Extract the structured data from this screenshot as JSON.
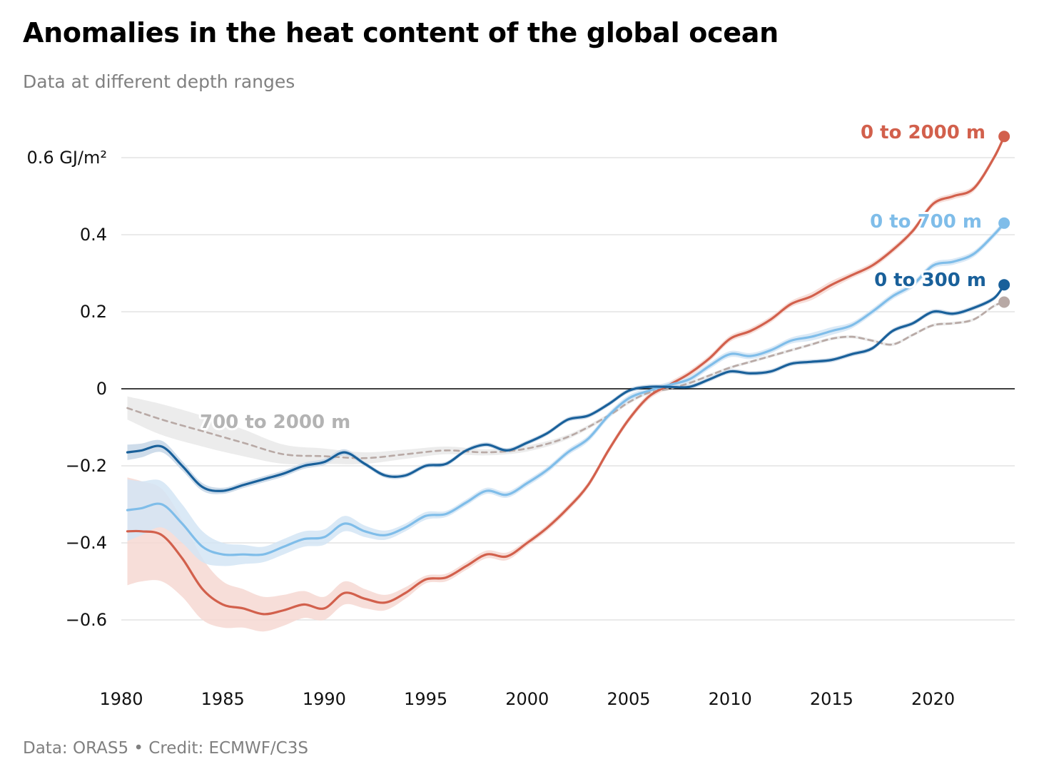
{
  "header": {
    "title": "Anomalies in the heat content of the global ocean",
    "subtitle": "Data at different depth ranges"
  },
  "footer": {
    "source": "Data: ORAS5 • Credit: ECMWF/C3S"
  },
  "chart_data": {
    "type": "line",
    "title": "Anomalies in the heat content of the global ocean",
    "subtitle": "Data at different depth ranges",
    "xlabel": "",
    "ylabel": "",
    "unit": "GJ/m²",
    "xlim": [
      1980.0,
      2024.5
    ],
    "ylim": [
      -0.72,
      0.7
    ],
    "x_ticks": [
      1980,
      1985,
      1990,
      1995,
      2000,
      2005,
      2010,
      2015,
      2020
    ],
    "y_ticks": [
      {
        "value": 0.6,
        "label": "0.6 GJ/m²"
      },
      {
        "value": 0.4,
        "label": "0.4"
      },
      {
        "value": 0.2,
        "label": "0.2"
      },
      {
        "value": 0,
        "label": "0"
      },
      {
        "value": -0.2,
        "label": "−0.2"
      },
      {
        "value": -0.4,
        "label": "−0.4"
      },
      {
        "value": -0.6,
        "label": "−0.6"
      }
    ],
    "grid": true,
    "legend": "direct labels at line ends",
    "series": [
      {
        "name": "700 to 2000 m",
        "color": "#b8a9a5",
        "label_color": "#b3b3b3",
        "dashed": true,
        "band_color": "#e9e9e9",
        "x": [
          1980.3,
          1982,
          1984,
          1986,
          1988,
          1990,
          1992,
          1994,
          1996,
          1998,
          2000,
          2002,
          2004,
          2005,
          2006,
          2007,
          2008,
          2009,
          2010,
          2011,
          2012,
          2013,
          2014,
          2015,
          2016,
          2017,
          2018,
          2019,
          2020,
          2021,
          2022,
          2023,
          2023.5
        ],
        "y": [
          -0.05,
          -0.08,
          -0.11,
          -0.14,
          -0.17,
          -0.175,
          -0.18,
          -0.17,
          -0.16,
          -0.165,
          -0.155,
          -0.125,
          -0.07,
          -0.035,
          -0.01,
          0.0,
          0.015,
          0.035,
          0.055,
          0.07,
          0.085,
          0.1,
          0.115,
          0.13,
          0.135,
          0.125,
          0.115,
          0.14,
          0.165,
          0.17,
          0.18,
          0.215,
          0.225
        ],
        "band": [
          0.03,
          0.04,
          0.04,
          0.035,
          0.025,
          0.02,
          0.015,
          0.012,
          0.01,
          0.008,
          0.008,
          0.006,
          0.005,
          0.005,
          0.004,
          0.004,
          0.004,
          0.004,
          0.004,
          0.004,
          0.004,
          0.004,
          0.004,
          0.004,
          0.004,
          0.004,
          0.004,
          0.004,
          0.004,
          0.004,
          0.004,
          0.004,
          0.004
        ]
      },
      {
        "name": "0 to 2000 m",
        "color": "#d2604c",
        "label_color": "#d2604c",
        "dashed": false,
        "band_color": "#f6d8d2",
        "x": [
          1980.3,
          1981,
          1982,
          1983,
          1984,
          1985,
          1986,
          1987,
          1988,
          1989,
          1990,
          1991,
          1992,
          1993,
          1994,
          1995,
          1996,
          1997,
          1998,
          1999,
          2000,
          2001,
          2002,
          2003,
          2004,
          2005,
          2006,
          2007,
          2008,
          2009,
          2010,
          2011,
          2012,
          2013,
          2014,
          2015,
          2016,
          2017,
          2018,
          2019,
          2020,
          2021,
          2022,
          2023,
          2023.5
        ],
        "y": [
          -0.37,
          -0.37,
          -0.38,
          -0.44,
          -0.52,
          -0.56,
          -0.57,
          -0.585,
          -0.575,
          -0.56,
          -0.57,
          -0.53,
          -0.545,
          -0.555,
          -0.53,
          -0.495,
          -0.49,
          -0.46,
          -0.43,
          -0.435,
          -0.4,
          -0.36,
          -0.31,
          -0.25,
          -0.16,
          -0.08,
          -0.02,
          0.01,
          0.04,
          0.08,
          0.13,
          0.15,
          0.18,
          0.22,
          0.24,
          0.27,
          0.295,
          0.32,
          0.36,
          0.41,
          0.48,
          0.5,
          0.52,
          0.6,
          0.655
        ],
        "band": [
          0.14,
          0.13,
          0.12,
          0.1,
          0.08,
          0.06,
          0.05,
          0.045,
          0.04,
          0.035,
          0.03,
          0.03,
          0.025,
          0.02,
          0.015,
          0.01,
          0.01,
          0.01,
          0.01,
          0.01,
          0.008,
          0.008,
          0.008,
          0.008,
          0.008,
          0.008,
          0.008,
          0.008,
          0.008,
          0.008,
          0.008,
          0.008,
          0.008,
          0.008,
          0.01,
          0.01,
          0.008,
          0.008,
          0.008,
          0.008,
          0.008,
          0.008,
          0.008,
          0.008,
          0.008
        ]
      },
      {
        "name": "0 to 700 m",
        "color": "#7fbde9",
        "label_color": "#7fbde9",
        "dashed": false,
        "band_color": "#d3e5f5",
        "x": [
          1980.3,
          1981,
          1982,
          1983,
          1984,
          1985,
          1986,
          1987,
          1988,
          1989,
          1990,
          1991,
          1992,
          1993,
          1994,
          1995,
          1996,
          1997,
          1998,
          1999,
          2000,
          2001,
          2002,
          2003,
          2004,
          2005,
          2006,
          2007,
          2008,
          2009,
          2010,
          2011,
          2012,
          2013,
          2014,
          2015,
          2016,
          2017,
          2018,
          2019,
          2020,
          2021,
          2022,
          2023,
          2023.5
        ],
        "y": [
          -0.315,
          -0.31,
          -0.3,
          -0.35,
          -0.41,
          -0.43,
          -0.43,
          -0.43,
          -0.41,
          -0.39,
          -0.385,
          -0.35,
          -0.37,
          -0.38,
          -0.36,
          -0.33,
          -0.325,
          -0.295,
          -0.265,
          -0.275,
          -0.245,
          -0.21,
          -0.165,
          -0.13,
          -0.07,
          -0.025,
          -0.005,
          0.01,
          0.025,
          0.06,
          0.09,
          0.085,
          0.1,
          0.125,
          0.135,
          0.15,
          0.165,
          0.2,
          0.24,
          0.27,
          0.32,
          0.33,
          0.35,
          0.4,
          0.43
        ],
        "band": [
          0.08,
          0.07,
          0.06,
          0.05,
          0.04,
          0.03,
          0.025,
          0.02,
          0.02,
          0.02,
          0.02,
          0.02,
          0.015,
          0.012,
          0.01,
          0.01,
          0.008,
          0.008,
          0.008,
          0.008,
          0.008,
          0.008,
          0.008,
          0.008,
          0.008,
          0.008,
          0.008,
          0.008,
          0.008,
          0.008,
          0.008,
          0.008,
          0.008,
          0.008,
          0.01,
          0.01,
          0.008,
          0.008,
          0.008,
          0.008,
          0.008,
          0.008,
          0.008,
          0.008,
          0.008
        ]
      },
      {
        "name": "0 to 300 m",
        "color": "#19609a",
        "label_color": "#19609a",
        "dashed": false,
        "band_color": "#c5d6e6",
        "x": [
          1980.3,
          1981,
          1982,
          1983,
          1984,
          1985,
          1986,
          1987,
          1988,
          1989,
          1990,
          1991,
          1992,
          1993,
          1994,
          1995,
          1996,
          1997,
          1998,
          1999,
          2000,
          2001,
          2002,
          2003,
          2004,
          2005,
          2006,
          2007,
          2008,
          2009,
          2010,
          2011,
          2012,
          2013,
          2014,
          2015,
          2016,
          2017,
          2018,
          2019,
          2020,
          2021,
          2022,
          2023,
          2023.5
        ],
        "y": [
          -0.165,
          -0.16,
          -0.15,
          -0.2,
          -0.255,
          -0.265,
          -0.25,
          -0.235,
          -0.22,
          -0.2,
          -0.19,
          -0.165,
          -0.195,
          -0.225,
          -0.225,
          -0.2,
          -0.195,
          -0.16,
          -0.145,
          -0.16,
          -0.14,
          -0.115,
          -0.08,
          -0.07,
          -0.04,
          -0.005,
          0.005,
          0.005,
          0.005,
          0.025,
          0.045,
          0.04,
          0.045,
          0.065,
          0.07,
          0.075,
          0.09,
          0.105,
          0.15,
          0.17,
          0.2,
          0.195,
          0.21,
          0.235,
          0.27
        ],
        "band": [
          0.02,
          0.018,
          0.015,
          0.012,
          0.01,
          0.008,
          0.008,
          0.008,
          0.008,
          0.008,
          0.008,
          0.008,
          0.006,
          0.006,
          0.006,
          0.006,
          0.006,
          0.006,
          0.006,
          0.006,
          0.006,
          0.006,
          0.006,
          0.006,
          0.006,
          0.006,
          0.006,
          0.006,
          0.006,
          0.006,
          0.006,
          0.006,
          0.006,
          0.006,
          0.006,
          0.006,
          0.006,
          0.006,
          0.006,
          0.006,
          0.006,
          0.006,
          0.006,
          0.006,
          0.006
        ]
      }
    ]
  }
}
